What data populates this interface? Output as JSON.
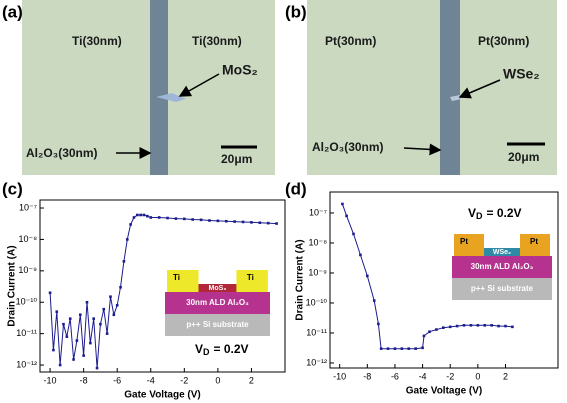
{
  "panels": [
    {
      "label": "(a)",
      "left_label": "Ti(30nm)",
      "right_label": "Ti(30nm)",
      "flake_label": "MoS₂",
      "oxide_label": "Al₂O₃(30nm)",
      "scale_bar": "20μm"
    },
    {
      "label": "(b)",
      "left_label": "Pt(30nm)",
      "right_label": "Pt(30nm)",
      "flake_label": "WSe₂",
      "oxide_label": "Al₂O₃(30nm)",
      "scale_bar": "20μm"
    }
  ],
  "chart_data": [
    {
      "type": "line",
      "panel_label": "(c)",
      "x_label": "Gate Voltage (V)",
      "y_label": "Drain Current (A)",
      "log_y": true,
      "xlim": [
        -10.6,
        4
      ],
      "xticks": [
        -10,
        -8,
        -6,
        -4,
        -2,
        0,
        2
      ],
      "ylim": [
        6e-13,
        1.8e-07
      ],
      "yticks": [
        {
          "value": 1e-12,
          "label": "10⁻¹²"
        },
        {
          "value": 1e-11,
          "label": "10⁻¹¹"
        },
        {
          "value": 1e-10,
          "label": "10⁻¹⁰"
        },
        {
          "value": 1e-09,
          "label": "10⁻⁹"
        },
        {
          "value": 1e-08,
          "label": "10⁻⁸"
        },
        {
          "value": 1e-07,
          "label": "10⁻⁷"
        }
      ],
      "annotation": {
        "symbol": "V",
        "subscript": "D",
        "text": "= 0.2V"
      },
      "inset": {
        "contact_left": "Ti",
        "contact_right": "Ti",
        "channel": "MoS₂",
        "oxide": "30nm ALD Al₂O₃",
        "substrate": "p++ Si substrate"
      },
      "series": [
        {
          "color": "#1c1c8f",
          "x": [
            -10,
            -9.8,
            -9.6,
            -9.4,
            -9.2,
            -9.0,
            -8.8,
            -8.6,
            -8.4,
            -8.2,
            -8.0,
            -7.8,
            -7.6,
            -7.4,
            -7.2,
            -7.0,
            -6.8,
            -6.6,
            -6.4,
            -6.2,
            -6.0,
            -5.8,
            -5.6,
            -5.4,
            -5.2,
            -5.0,
            -4.8,
            -4.6,
            -4.4,
            -4.2,
            -4.0,
            -3.5,
            -3,
            -2.5,
            -2,
            -1.5,
            -1,
            -0.5,
            0,
            0.5,
            1,
            1.5,
            2,
            2.5,
            3,
            3.5
          ],
          "values": [
            2e-10,
            3e-12,
            5e-11,
            1e-12,
            2e-11,
            8e-12,
            3e-11,
            1.5e-12,
            6e-12,
            4e-11,
            2e-12,
            1e-10,
            5e-12,
            3e-11,
            8e-13,
            2e-11,
            6e-11,
            1e-11,
            1.5e-10,
            4e-11,
            8e-11,
            3e-10,
            2e-09,
            1e-08,
            3e-08,
            5e-08,
            6e-08,
            6e-08,
            6e-08,
            5.5e-08,
            5e-08,
            5e-08,
            4.8e-08,
            4.6e-08,
            4.5e-08,
            4.3e-08,
            4.2e-08,
            4e-08,
            3.9e-08,
            3.8e-08,
            3.7e-08,
            3.6e-08,
            3.5e-08,
            3.4e-08,
            3.3e-08,
            3.2e-08
          ]
        }
      ]
    },
    {
      "type": "line",
      "panel_label": "(d)",
      "x_label": "Gate Voltage (V)",
      "y_label": "Drain Current (A)",
      "log_y": true,
      "xlim": [
        -10.7,
        5.8
      ],
      "xticks": [
        -10,
        -8,
        -6,
        -4,
        -2,
        0,
        2
      ],
      "ylim": [
        6.8e-13,
        5e-07
      ],
      "yticks": [
        {
          "value": 1e-12,
          "label": "10⁻¹²"
        },
        {
          "value": 1e-11,
          "label": "10⁻¹¹"
        },
        {
          "value": 1e-10,
          "label": "10⁻¹⁰"
        },
        {
          "value": 1e-09,
          "label": "10⁻⁹"
        },
        {
          "value": 1e-08,
          "label": "10⁻⁸"
        },
        {
          "value": 1e-07,
          "label": "10⁻⁷"
        }
      ],
      "annotation": {
        "symbol": "V",
        "subscript": "D",
        "text": "= 0.2V"
      },
      "inset": {
        "contact_left": "Pt",
        "contact_right": "Pt",
        "channel": "WSe₂",
        "oxide": "30nm ALD Al₂O₃",
        "substrate": "p++ Si substrate"
      },
      "series": [
        {
          "color": "#1c1c8f",
          "x": [
            -9.8,
            -9.5,
            -9,
            -8.5,
            -8,
            -7.5,
            -7.2,
            -7,
            -6.5,
            -6,
            -5.5,
            -5,
            -4.5,
            -4,
            -3.9,
            -3.5,
            -3,
            -2.5,
            -2,
            -1.5,
            -1,
            -0.5,
            0,
            0.5,
            1,
            1.5,
            2,
            2.5
          ],
          "values": [
            2e-07,
            8e-08,
            2e-08,
            4e-09,
            8e-10,
            1.2e-10,
            2e-11,
            3e-12,
            3e-12,
            3e-12,
            3e-12,
            3e-12,
            3e-12,
            3.2e-12,
            8e-12,
            1.1e-11,
            1.3e-11,
            1.5e-11,
            1.6e-11,
            1.7e-11,
            1.8e-11,
            1.8e-11,
            1.8e-11,
            1.8e-11,
            1.8e-11,
            1.7e-11,
            1.7e-11,
            1.6e-11
          ]
        }
      ]
    }
  ]
}
